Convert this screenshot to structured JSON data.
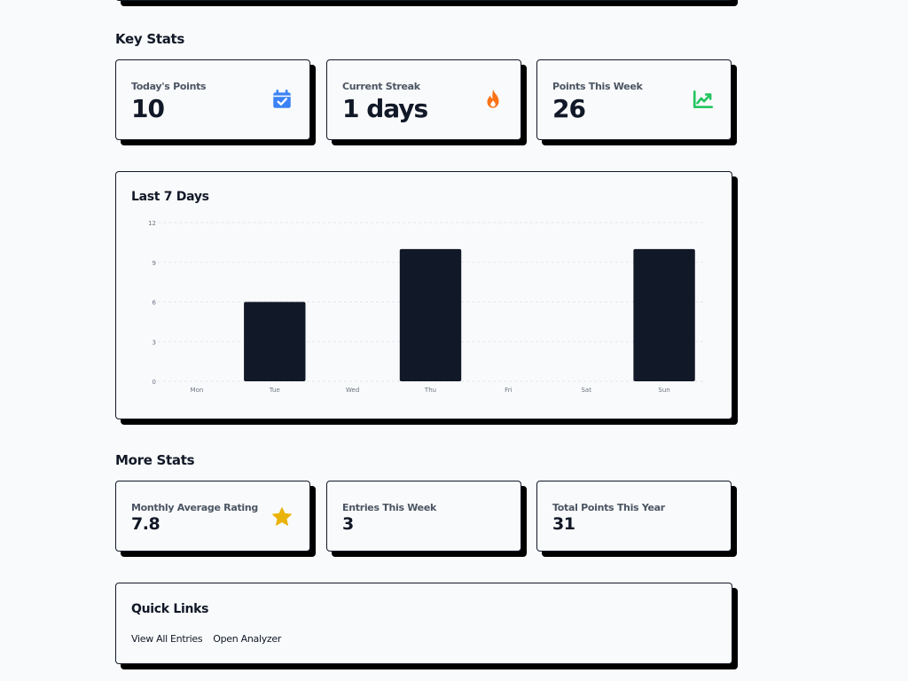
{
  "sections": {
    "key_stats": "Key Stats",
    "more_stats": "More Stats"
  },
  "key_stats": [
    {
      "label": "Today's Points",
      "value": "10",
      "icon": "calendar-check-icon",
      "icon_color": "#3b82f6"
    },
    {
      "label": "Current Streak",
      "value": "1 days",
      "icon": "fire-icon",
      "icon_color": "#f97316"
    },
    {
      "label": "Points This Week",
      "value": "26",
      "icon": "trending-up-icon",
      "icon_color": "#22c55e"
    }
  ],
  "chart_card": {
    "title": "Last 7 Days"
  },
  "chart_data": {
    "type": "bar",
    "categories": [
      "Mon",
      "Tue",
      "Wed",
      "Thu",
      "Fri",
      "Sat",
      "Sun"
    ],
    "values": [
      0,
      6,
      0,
      10,
      0,
      0,
      10
    ],
    "y_ticks": [
      "0",
      "3",
      "6",
      "9",
      "12"
    ],
    "ylim": [
      0,
      12
    ],
    "grid": true,
    "bar_color": "#111827",
    "grid_color": "#e5e7eb",
    "title": "Last 7 Days",
    "xlabel": "",
    "ylabel": ""
  },
  "more_stats": [
    {
      "label": "Monthly Average Rating",
      "value": "7.8",
      "icon": "star-icon",
      "icon_color": "#eab308"
    },
    {
      "label": "Entries This Week",
      "value": "3"
    },
    {
      "label": "Total Points This Year",
      "value": "31"
    }
  ],
  "quick_links": {
    "title": "Quick Links",
    "links": [
      "View All Entries",
      "Open Analyzer"
    ]
  },
  "colors": {
    "background": "#f9fafb",
    "text": "#111827",
    "muted": "#4b5563",
    "shadow": "#000000"
  }
}
